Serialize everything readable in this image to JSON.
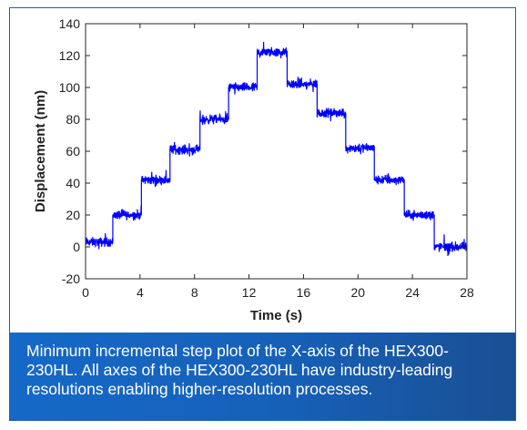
{
  "chart_data": {
    "type": "line",
    "title": "",
    "xlabel": "Time (s)",
    "ylabel": "Displacement (nm)",
    "xlim": [
      0,
      28
    ],
    "ylim": [
      -20,
      140
    ],
    "x_ticks": [
      0,
      4,
      8,
      12,
      16,
      20,
      24,
      28
    ],
    "y_ticks": [
      -20,
      0,
      20,
      40,
      60,
      80,
      100,
      120,
      140
    ],
    "grid": false,
    "legend": "none",
    "color": "#0000ff",
    "series": [
      {
        "x": [
          0,
          2.0,
          2.0,
          4.1,
          4.1,
          6.2,
          6.2,
          8.4,
          8.4,
          10.5,
          10.5,
          12.6,
          12.6,
          14.8,
          14.8,
          17.0,
          17.0,
          19.1,
          19.1,
          21.2,
          21.2,
          23.4,
          23.4,
          25.6,
          25.6,
          28
        ],
        "y": [
          3,
          3,
          20,
          20,
          42,
          42,
          61,
          61,
          80,
          80,
          100,
          100,
          122,
          122,
          102,
          102,
          84,
          84,
          62,
          62,
          42,
          42,
          20,
          20,
          0,
          0
        ]
      }
    ]
  },
  "caption": {
    "lines": [
      "Minimum incremental step plot of the X-axis of the HEX300-",
      "230HL. All axes of the HEX300-230HL have industry-leading",
      "resolutions enabling higher-resolution processes."
    ]
  }
}
